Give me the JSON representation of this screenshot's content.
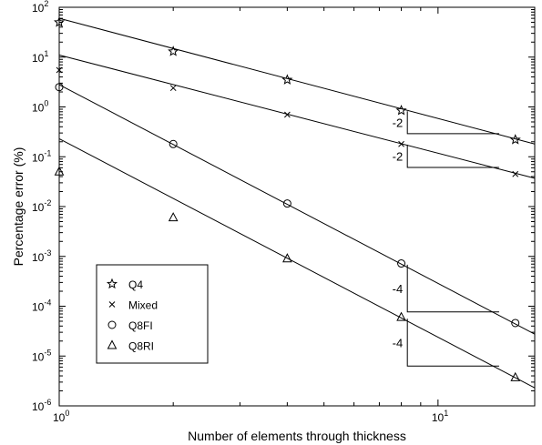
{
  "chart_data": {
    "type": "scatter",
    "xlabel": "Number of elements through thickness",
    "ylabel": "Percentage error (%)",
    "xscale": "log",
    "yscale": "log",
    "xlim": [
      1,
      18
    ],
    "ylim": [
      1e-06,
      100
    ],
    "x_ticks": [
      {
        "value": 1,
        "base": "10",
        "exp": "0"
      },
      {
        "value": 10,
        "base": "10",
        "exp": "1"
      }
    ],
    "y_ticks": [
      {
        "value": 1e-06,
        "base": "10",
        "exp": "-6"
      },
      {
        "value": 1e-05,
        "base": "10",
        "exp": "-5"
      },
      {
        "value": 0.0001,
        "base": "10",
        "exp": "-4"
      },
      {
        "value": 0.001,
        "base": "10",
        "exp": "-3"
      },
      {
        "value": 0.01,
        "base": "10",
        "exp": "-2"
      },
      {
        "value": 0.1,
        "base": "10",
        "exp": "-1"
      },
      {
        "value": 1,
        "base": "10",
        "exp": "0"
      },
      {
        "value": 10,
        "base": "10",
        "exp": "1"
      },
      {
        "value": 100,
        "base": "10",
        "exp": "2"
      }
    ],
    "grid": false,
    "legend": "lower-left",
    "series": [
      {
        "name": "Q4",
        "marker": "star",
        "x": [
          1,
          2,
          4,
          8,
          16
        ],
        "y": [
          50,
          13,
          3.5,
          0.85,
          0.22
        ]
      },
      {
        "name": "Mixed",
        "marker": "x",
        "x": [
          1,
          2,
          4,
          8,
          16
        ],
        "y": [
          5.5,
          2.4,
          0.7,
          0.18,
          0.045
        ]
      },
      {
        "name": "Q8FI",
        "marker": "circle",
        "x": [
          1,
          2,
          4,
          8,
          16
        ],
        "y": [
          2.5,
          0.18,
          0.0115,
          0.00072,
          4.6e-05
        ]
      },
      {
        "name": "Q8RI",
        "marker": "triangle",
        "x": [
          1,
          2,
          4,
          8,
          16
        ],
        "y": [
          0.05,
          0.006,
          0.0009,
          6e-05,
          3.7e-06
        ]
      }
    ],
    "fit_lines": [
      {
        "x": [
          1,
          18
        ],
        "y": [
          60,
          0.18
        ]
      },
      {
        "x": [
          1,
          18
        ],
        "y": [
          11,
          0.037
        ]
      },
      {
        "x": [
          1,
          18
        ],
        "y": [
          2.8,
          2.75e-05
        ]
      },
      {
        "x": [
          1,
          18
        ],
        "y": [
          0.23,
          2.3e-06
        ]
      }
    ],
    "slope_triangles": [
      {
        "label": "-2",
        "x0": 8.3,
        "x1": 14.5,
        "y_top": 0.82,
        "y_bottom": 0.29
      },
      {
        "label": "-2",
        "x0": 8.3,
        "x1": 14.5,
        "y_top": 0.175,
        "y_bottom": 0.061
      },
      {
        "label": "-4",
        "x0": 8.3,
        "x1": 14.5,
        "y_top": 0.00068,
        "y_bottom": 7.7e-05
      },
      {
        "label": "-4",
        "x0": 8.3,
        "x1": 14.5,
        "y_top": 5.6e-05,
        "y_bottom": 6.3e-06
      }
    ]
  }
}
